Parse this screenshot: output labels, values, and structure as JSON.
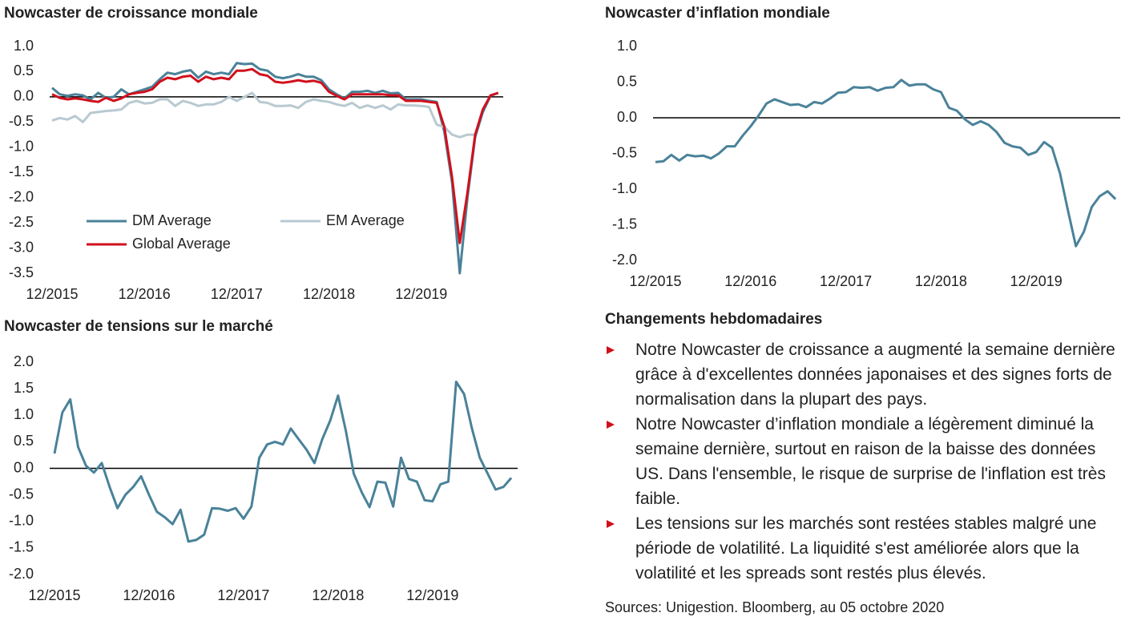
{
  "chart_data": [
    {
      "type": "line",
      "title": "Nowcaster de croissance mondiale",
      "categories": [
        "12/2015",
        null,
        null,
        null,
        null,
        null,
        null,
        null,
        null,
        null,
        null,
        null,
        "12/2016",
        null,
        null,
        null,
        null,
        null,
        null,
        null,
        null,
        null,
        null,
        null,
        "12/2017",
        null,
        null,
        null,
        null,
        null,
        null,
        null,
        null,
        null,
        null,
        null,
        "12/2018",
        null,
        null,
        null,
        null,
        null,
        null,
        null,
        null,
        null,
        null,
        null,
        "12/2019",
        null,
        null,
        null,
        null,
        null,
        null,
        null,
        null,
        null,
        null
      ],
      "series": [
        {
          "name": "DM Average",
          "color": "#4a8299",
          "values": [
            0.18,
            0.05,
            0.02,
            0.05,
            0.03,
            -0.05,
            0.08,
            -0.02,
            0.0,
            0.15,
            0.05,
            0.1,
            0.15,
            0.2,
            0.35,
            0.48,
            0.45,
            0.5,
            0.53,
            0.38,
            0.5,
            0.45,
            0.48,
            0.45,
            0.67,
            0.65,
            0.66,
            0.55,
            0.52,
            0.4,
            0.37,
            0.4,
            0.45,
            0.4,
            0.4,
            0.33,
            0.15,
            0.05,
            -0.03,
            0.1,
            0.1,
            0.12,
            0.08,
            0.12,
            0.07,
            0.08,
            -0.05,
            -0.05,
            -0.05,
            -0.08,
            -0.1,
            -0.7,
            -1.7,
            -3.5,
            -2.0,
            -0.8,
            -0.3,
            0.02,
            0.08
          ]
        },
        {
          "name": "EM Average",
          "color": "#b8c9d1",
          "values": [
            -0.47,
            -0.42,
            -0.45,
            -0.38,
            -0.5,
            -0.32,
            -0.3,
            -0.28,
            -0.27,
            -0.25,
            -0.12,
            -0.08,
            -0.13,
            -0.12,
            -0.05,
            -0.05,
            -0.18,
            -0.08,
            -0.12,
            -0.18,
            -0.15,
            -0.15,
            -0.1,
            0.0,
            -0.08,
            0.0,
            0.08,
            -0.1,
            -0.12,
            -0.18,
            -0.18,
            -0.17,
            -0.22,
            -0.1,
            -0.05,
            -0.08,
            -0.1,
            -0.15,
            -0.18,
            -0.12,
            -0.22,
            -0.17,
            -0.22,
            -0.17,
            -0.25,
            -0.15,
            -0.17,
            -0.17,
            -0.18,
            -0.2,
            -0.55,
            -0.6,
            -0.75,
            -0.8,
            -0.75,
            -0.75,
            null,
            null,
            null
          ]
        },
        {
          "name": "Global Average",
          "color": "#d0101c",
          "values": [
            0.05,
            -0.02,
            -0.05,
            -0.03,
            -0.05,
            -0.08,
            -0.1,
            -0.02,
            -0.08,
            -0.03,
            0.05,
            0.08,
            0.1,
            0.15,
            0.3,
            0.38,
            0.35,
            0.4,
            0.42,
            0.3,
            0.4,
            0.35,
            0.38,
            0.35,
            0.52,
            0.52,
            0.55,
            0.45,
            0.42,
            0.3,
            0.28,
            0.3,
            0.33,
            0.3,
            0.32,
            0.28,
            0.1,
            0.02,
            -0.05,
            0.05,
            0.05,
            0.05,
            0.05,
            0.05,
            0.03,
            0.03,
            -0.08,
            -0.08,
            -0.08,
            -0.1,
            -0.12,
            -0.6,
            -1.6,
            -2.9,
            -1.9,
            -0.75,
            -0.25,
            0.03,
            0.08
          ]
        }
      ],
      "ylim": [
        -3.5,
        1.0
      ],
      "yticks": [
        {
          "value": 1.0,
          "label": "1.0"
        },
        0.5,
        {
          "value": 0.0,
          "label": "0.0"
        },
        -0.5,
        {
          "value": -1.0,
          "label": "-1.0"
        },
        -1.5,
        {
          "value": -2.0,
          "label": "-2.0"
        },
        -2.5,
        {
          "value": -3.0,
          "label": "-3.0"
        },
        -3.5
      ]
    },
    {
      "type": "line",
      "title": "Nowcaster d’inflation mondiale",
      "color": "#4a8299",
      "categories": [
        "12/2015",
        null,
        null,
        null,
        null,
        null,
        null,
        null,
        null,
        null,
        null,
        null,
        "12/2016",
        null,
        null,
        null,
        null,
        null,
        null,
        null,
        null,
        null,
        null,
        null,
        "12/2017",
        null,
        null,
        null,
        null,
        null,
        null,
        null,
        null,
        null,
        null,
        null,
        "12/2018",
        null,
        null,
        null,
        null,
        null,
        null,
        null,
        null,
        null,
        null,
        null,
        "12/2019",
        null,
        null,
        null,
        null,
        null,
        null,
        null,
        null,
        null,
        null
      ],
      "values": [
        -0.62,
        -0.61,
        -0.52,
        -0.6,
        -0.52,
        -0.54,
        -0.53,
        -0.57,
        -0.5,
        -0.4,
        -0.4,
        -0.25,
        -0.12,
        0.03,
        0.2,
        0.26,
        0.22,
        0.18,
        0.19,
        0.15,
        0.22,
        0.2,
        0.27,
        0.35,
        0.36,
        0.43,
        0.42,
        0.43,
        0.38,
        0.42,
        0.43,
        0.53,
        0.45,
        0.47,
        0.47,
        0.4,
        0.36,
        0.14,
        0.1,
        -0.02,
        -0.1,
        -0.05,
        -0.1,
        -0.2,
        -0.35,
        -0.4,
        -0.42,
        -0.52,
        -0.48,
        -0.34,
        -0.42,
        -0.78,
        -1.3,
        -1.8,
        -1.6,
        -1.25,
        -1.1,
        -1.03,
        -1.14
      ],
      "ylim": [
        -2.0,
        1.0
      ],
      "yticks": [
        {
          "value": 1.0,
          "label": "1.0"
        },
        0.5,
        {
          "value": 0.0,
          "label": "0.0"
        },
        -0.5,
        {
          "value": -1.0,
          "label": "-1.0"
        },
        -1.5,
        {
          "value": -2.0,
          "label": "-2.0"
        }
      ]
    },
    {
      "type": "line",
      "title": "Nowcaster de tensions sur le marché",
      "color": "#4a8299",
      "categories": [
        "12/2015",
        null,
        null,
        null,
        null,
        null,
        null,
        null,
        null,
        null,
        null,
        null,
        "12/2016",
        null,
        null,
        null,
        null,
        null,
        null,
        null,
        null,
        null,
        null,
        null,
        "12/2017",
        null,
        null,
        null,
        null,
        null,
        null,
        null,
        null,
        null,
        null,
        null,
        "12/2018",
        null,
        null,
        null,
        null,
        null,
        null,
        null,
        null,
        null,
        null,
        null,
        "12/2019",
        null,
        null,
        null,
        null,
        null,
        null,
        null,
        null,
        null,
        null
      ],
      "values": [
        0.28,
        1.05,
        1.3,
        0.4,
        0.05,
        -0.08,
        0.1,
        -0.35,
        -0.75,
        -0.5,
        -0.35,
        -0.15,
        -0.5,
        -0.82,
        -0.92,
        -1.05,
        -0.78,
        -1.38,
        -1.35,
        -1.25,
        -0.75,
        -0.76,
        -0.8,
        -0.75,
        -0.95,
        -0.72,
        0.2,
        0.45,
        0.5,
        0.45,
        0.75,
        0.55,
        0.35,
        0.1,
        0.55,
        0.9,
        1.37,
        0.7,
        -0.1,
        -0.45,
        -0.73,
        -0.25,
        -0.27,
        -0.72,
        0.2,
        -0.2,
        -0.25,
        -0.6,
        -0.62,
        -0.3,
        -0.25,
        1.63,
        1.4,
        0.75,
        0.2,
        -0.1,
        -0.4,
        -0.35,
        -0.18
      ],
      "ylim": [
        -2.0,
        2.0
      ],
      "yticks": [
        {
          "value": 2.0,
          "label": "2.0"
        },
        1.5,
        {
          "value": 1.0,
          "label": "1.0"
        },
        0.5,
        {
          "value": 0.0,
          "label": "0.0"
        },
        -0.5,
        {
          "value": -1.0,
          "label": "-1.0"
        },
        -1.5,
        {
          "value": -2.0,
          "label": "-2.0"
        }
      ]
    }
  ],
  "weekly_changes": {
    "title": "Changements hebdomadaires",
    "bullets": [
      "Notre Nowcaster de croissance a augmenté la semaine dernière grâce à d'excellentes données japonaises et des signes forts de normalisation dans la plupart des pays.",
      "Notre Nowcaster d’inflation mondiale a légèrement diminué la semaine dernière, surtout en raison de la baisse des données US. Dans l'ensemble, le risque de surprise de l'inflation est très faible.",
      "Les tensions sur les marchés sont restées stables malgré une période de volatilité. La liquidité s'est améliorée alors que la volatilité et les spreads sont restés plus élevés."
    ],
    "sources": "Sources: Unigestion. Bloomberg, au 05 octobre 2020"
  }
}
